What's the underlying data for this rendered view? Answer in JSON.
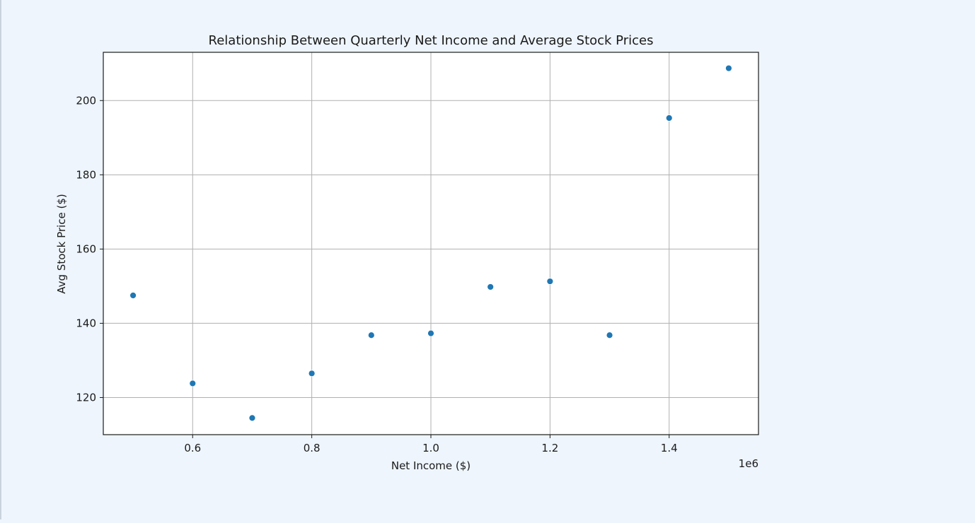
{
  "chart_data": {
    "type": "scatter",
    "title": "Relationship Between Quarterly Net Income and Average Stock Prices",
    "xlabel": "Net Income ($)",
    "ylabel": "Avg Stock Price ($)",
    "x_offset_label": "1e6",
    "xlim": [
      0.45,
      1.55
    ],
    "ylim": [
      110,
      213
    ],
    "x_ticks": [
      0.6,
      0.8,
      1.0,
      1.2,
      1.4
    ],
    "x_tick_labels": [
      "0.6",
      "0.8",
      "1.0",
      "1.2",
      "1.4"
    ],
    "y_ticks": [
      120,
      140,
      160,
      180,
      200
    ],
    "y_tick_labels": [
      "120",
      "140",
      "160",
      "180",
      "200"
    ],
    "grid": true,
    "marker_color": "#1f77b4",
    "points": [
      {
        "x": 500000,
        "y": 147.5
      },
      {
        "x": 600000,
        "y": 123.8
      },
      {
        "x": 700000,
        "y": 114.5
      },
      {
        "x": 800000,
        "y": 126.5
      },
      {
        "x": 900000,
        "y": 136.8
      },
      {
        "x": 1000000,
        "y": 137.3
      },
      {
        "x": 1100000,
        "y": 149.8
      },
      {
        "x": 1200000,
        "y": 151.3
      },
      {
        "x": 1300000,
        "y": 136.8
      },
      {
        "x": 1400000,
        "y": 195.3
      },
      {
        "x": 1500000,
        "y": 208.7
      }
    ]
  }
}
